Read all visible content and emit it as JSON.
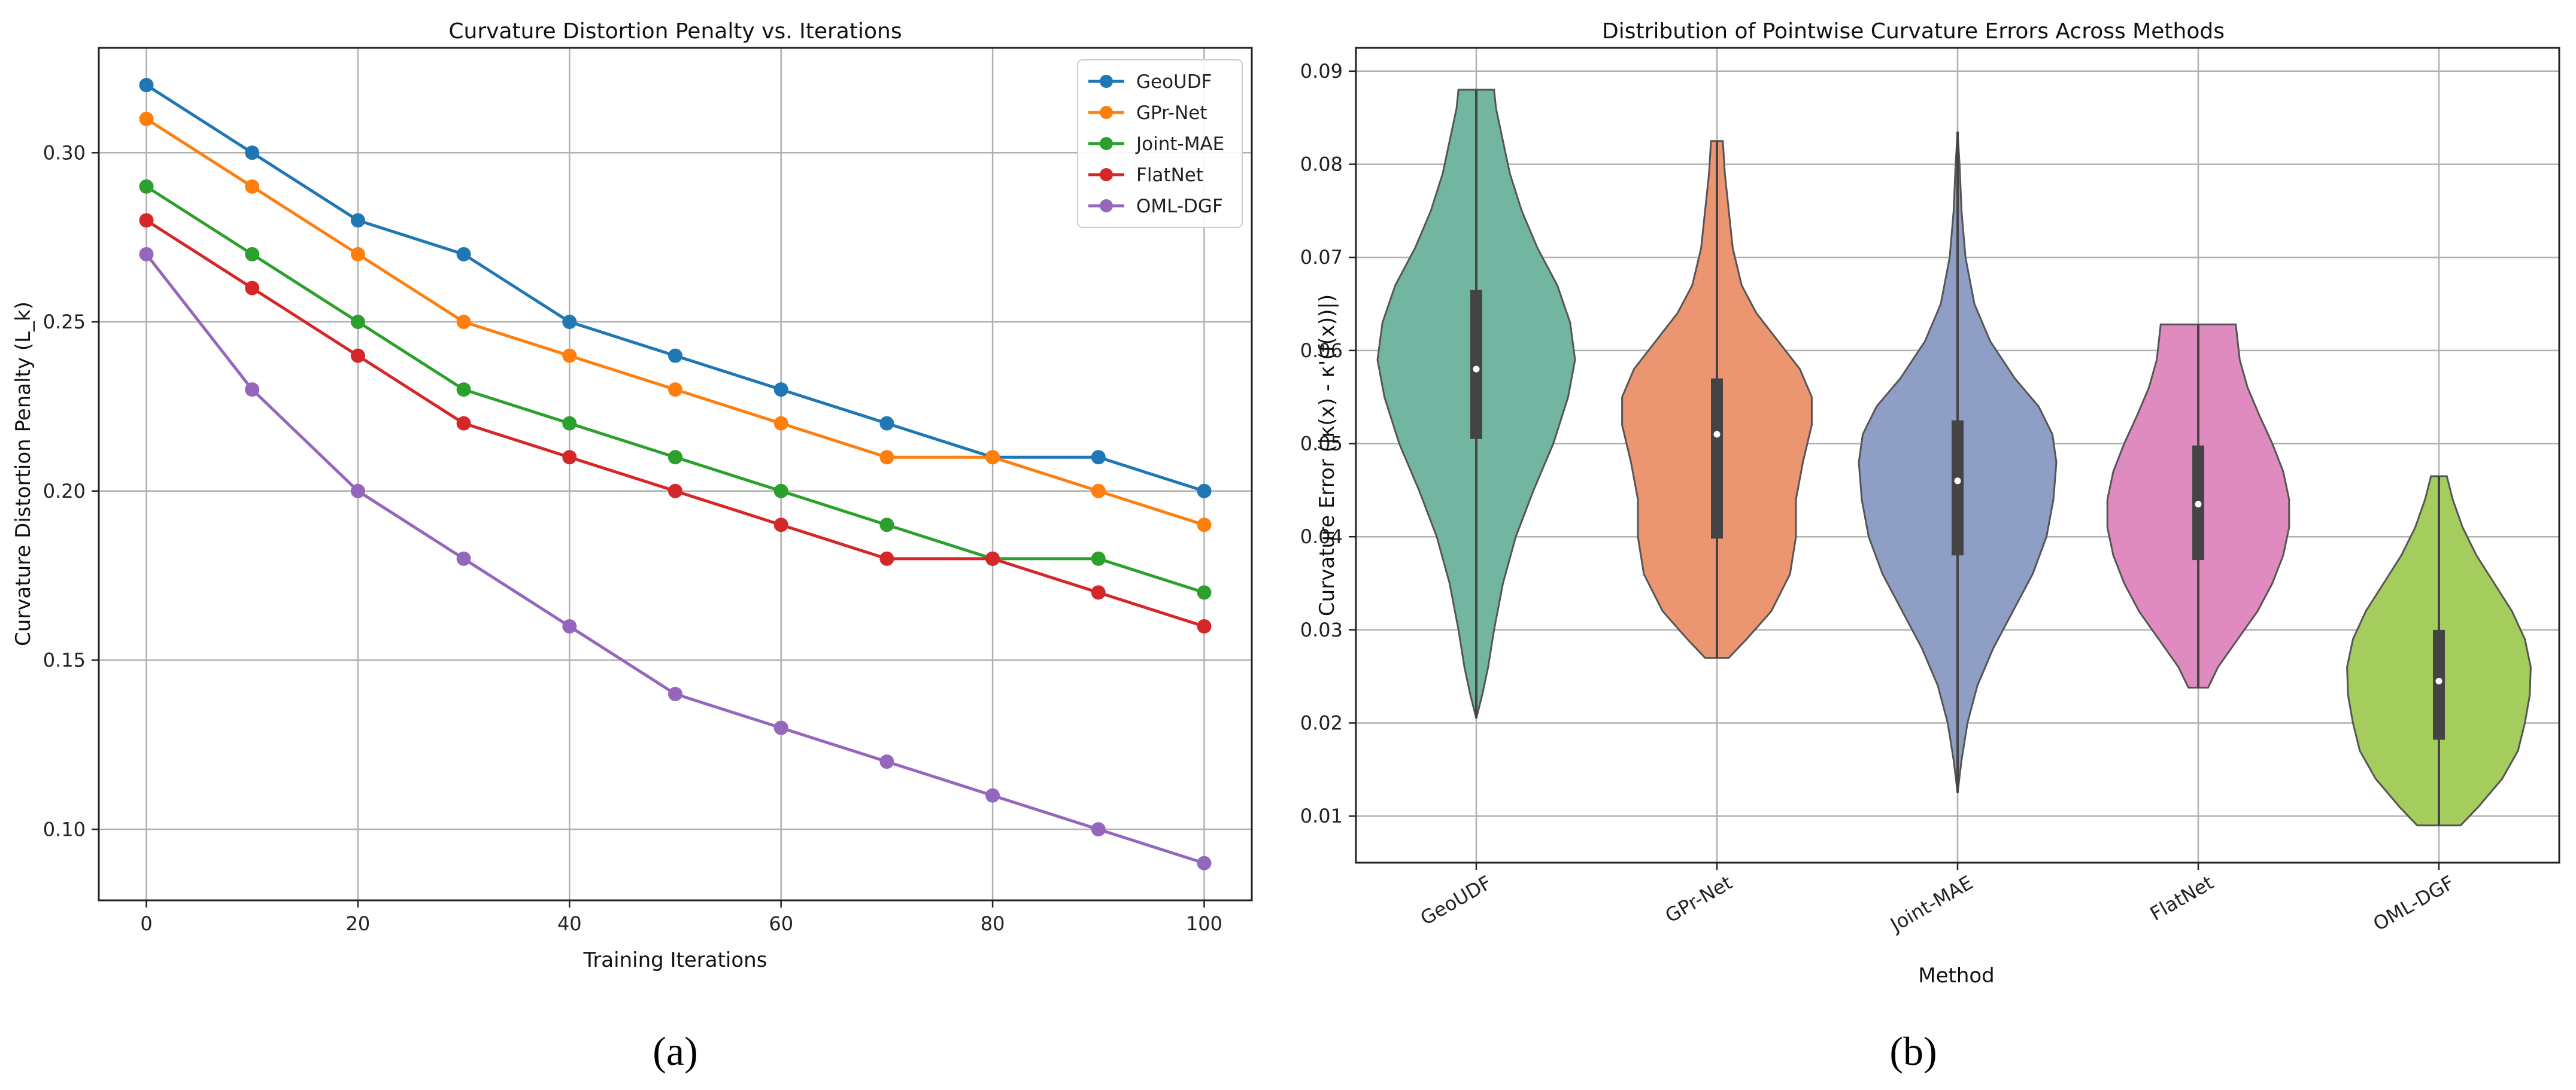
{
  "chart_data": [
    {
      "type": "line",
      "title": "Curvature Distortion Penalty vs. Iterations",
      "xlabel": "Training Iterations",
      "ylabel": "Curvature Distortion Penalty (L_k)",
      "panel_label": "(a)",
      "x": [
        0,
        10,
        20,
        30,
        40,
        50,
        60,
        70,
        80,
        90,
        100
      ],
      "xlim": [
        -4.5,
        104.5
      ],
      "ylim": [
        0.079,
        0.331
      ],
      "xticks": [
        0,
        20,
        40,
        60,
        80,
        100
      ],
      "xtick_labels": [
        "0",
        "20",
        "40",
        "60",
        "80",
        "100"
      ],
      "yticks": [
        0.1,
        0.15,
        0.2,
        0.25,
        0.3
      ],
      "ytick_labels": [
        "0.10",
        "0.15",
        "0.20",
        "0.25",
        "0.30"
      ],
      "grid": true,
      "legend_position": "top-right",
      "series": [
        {
          "name": "GeoUDF",
          "color": "#1f77b4",
          "values": [
            0.32,
            0.3,
            0.28,
            0.27,
            0.25,
            0.24,
            0.23,
            0.22,
            0.21,
            0.21,
            0.2
          ]
        },
        {
          "name": "GPr-Net",
          "color": "#ff7f0e",
          "values": [
            0.31,
            0.29,
            0.27,
            0.25,
            0.24,
            0.23,
            0.22,
            0.21,
            0.21,
            0.2,
            0.19
          ]
        },
        {
          "name": "Joint-MAE",
          "color": "#2ca02c",
          "values": [
            0.29,
            0.27,
            0.25,
            0.23,
            0.22,
            0.21,
            0.2,
            0.19,
            0.18,
            0.18,
            0.17
          ]
        },
        {
          "name": "FlatNet",
          "color": "#d62728",
          "values": [
            0.28,
            0.26,
            0.24,
            0.22,
            0.21,
            0.2,
            0.19,
            0.18,
            0.18,
            0.17,
            0.16
          ]
        },
        {
          "name": "OML-DGF",
          "color": "#9467bd",
          "values": [
            0.27,
            0.23,
            0.2,
            0.18,
            0.16,
            0.14,
            0.13,
            0.12,
            0.11,
            0.1,
            0.09
          ]
        }
      ]
    },
    {
      "type": "violin",
      "title": "Distribution of Pointwise Curvature Errors Across Methods",
      "xlabel": "Method",
      "ylabel": "Curvature Error (|κ(x) - κ'(f(x))|)",
      "panel_label": "(b)",
      "categories": [
        "GeoUDF",
        "GPr-Net",
        "Joint-MAE",
        "FlatNet",
        "OML-DGF"
      ],
      "ylim": [
        0.005,
        0.0925
      ],
      "yticks": [
        0.01,
        0.02,
        0.03,
        0.04,
        0.05,
        0.06,
        0.07,
        0.08,
        0.09
      ],
      "ytick_labels": [
        "0.01",
        "0.02",
        "0.03",
        "0.04",
        "0.05",
        "0.06",
        "0.07",
        "0.08",
        "0.09"
      ],
      "grid": true,
      "violins": [
        {
          "name": "GeoUDF",
          "color": "#72b6a2",
          "min": 0.0205,
          "q1": 0.0505,
          "median": 0.058,
          "q3": 0.0665,
          "max": 0.088,
          "profile": [
            [
              0.0205,
              0.0
            ],
            [
              0.023,
              0.06
            ],
            [
              0.026,
              0.12
            ],
            [
              0.03,
              0.18
            ],
            [
              0.035,
              0.27
            ],
            [
              0.04,
              0.4
            ],
            [
              0.045,
              0.58
            ],
            [
              0.05,
              0.78
            ],
            [
              0.055,
              0.93
            ],
            [
              0.059,
              1.0
            ],
            [
              0.063,
              0.95
            ],
            [
              0.067,
              0.82
            ],
            [
              0.071,
              0.62
            ],
            [
              0.075,
              0.46
            ],
            [
              0.079,
              0.34
            ],
            [
              0.083,
              0.26
            ],
            [
              0.086,
              0.2
            ],
            [
              0.088,
              0.18
            ]
          ]
        },
        {
          "name": "GPr-Net",
          "color": "#eb9571",
          "min": 0.027,
          "q1": 0.0398,
          "median": 0.051,
          "q3": 0.057,
          "max": 0.0825,
          "profile": [
            [
              0.027,
              0.12
            ],
            [
              0.029,
              0.3
            ],
            [
              0.032,
              0.55
            ],
            [
              0.036,
              0.74
            ],
            [
              0.04,
              0.8
            ],
            [
              0.044,
              0.8
            ],
            [
              0.048,
              0.87
            ],
            [
              0.052,
              0.96
            ],
            [
              0.055,
              0.96
            ],
            [
              0.058,
              0.84
            ],
            [
              0.061,
              0.62
            ],
            [
              0.064,
              0.4
            ],
            [
              0.067,
              0.25
            ],
            [
              0.071,
              0.16
            ],
            [
              0.075,
              0.12
            ],
            [
              0.079,
              0.08
            ],
            [
              0.0825,
              0.06
            ]
          ]
        },
        {
          "name": "Joint-MAE",
          "color": "#8e9ec4",
          "min": 0.0125,
          "q1": 0.038,
          "median": 0.046,
          "q3": 0.0525,
          "max": 0.0835,
          "profile": [
            [
              0.0125,
              0.0
            ],
            [
              0.016,
              0.04
            ],
            [
              0.02,
              0.1
            ],
            [
              0.024,
              0.2
            ],
            [
              0.028,
              0.36
            ],
            [
              0.032,
              0.56
            ],
            [
              0.036,
              0.76
            ],
            [
              0.04,
              0.9
            ],
            [
              0.044,
              0.97
            ],
            [
              0.048,
              1.0
            ],
            [
              0.051,
              0.96
            ],
            [
              0.054,
              0.82
            ],
            [
              0.057,
              0.58
            ],
            [
              0.061,
              0.33
            ],
            [
              0.065,
              0.17
            ],
            [
              0.07,
              0.08
            ],
            [
              0.075,
              0.04
            ],
            [
              0.08,
              0.02
            ],
            [
              0.0835,
              0.0
            ]
          ]
        },
        {
          "name": "FlatNet",
          "color": "#df8bbf",
          "min": 0.0238,
          "q1": 0.0375,
          "median": 0.0435,
          "q3": 0.0498,
          "max": 0.0628,
          "profile": [
            [
              0.0238,
              0.1
            ],
            [
              0.026,
              0.2
            ],
            [
              0.029,
              0.4
            ],
            [
              0.032,
              0.6
            ],
            [
              0.035,
              0.75
            ],
            [
              0.038,
              0.86
            ],
            [
              0.041,
              0.92
            ],
            [
              0.044,
              0.92
            ],
            [
              0.047,
              0.86
            ],
            [
              0.05,
              0.75
            ],
            [
              0.053,
              0.62
            ],
            [
              0.056,
              0.5
            ],
            [
              0.059,
              0.42
            ],
            [
              0.0628,
              0.38
            ]
          ]
        },
        {
          "name": "OML-DGF",
          "color": "#a4cd5d",
          "min": 0.009,
          "q1": 0.0182,
          "median": 0.0245,
          "q3": 0.03,
          "max": 0.0465,
          "profile": [
            [
              0.009,
              0.22
            ],
            [
              0.011,
              0.4
            ],
            [
              0.014,
              0.64
            ],
            [
              0.017,
              0.8
            ],
            [
              0.02,
              0.87
            ],
            [
              0.023,
              0.92
            ],
            [
              0.026,
              0.93
            ],
            [
              0.029,
              0.87
            ],
            [
              0.032,
              0.74
            ],
            [
              0.035,
              0.56
            ],
            [
              0.038,
              0.38
            ],
            [
              0.041,
              0.24
            ],
            [
              0.044,
              0.14
            ],
            [
              0.0465,
              0.08
            ]
          ]
        }
      ]
    }
  ]
}
